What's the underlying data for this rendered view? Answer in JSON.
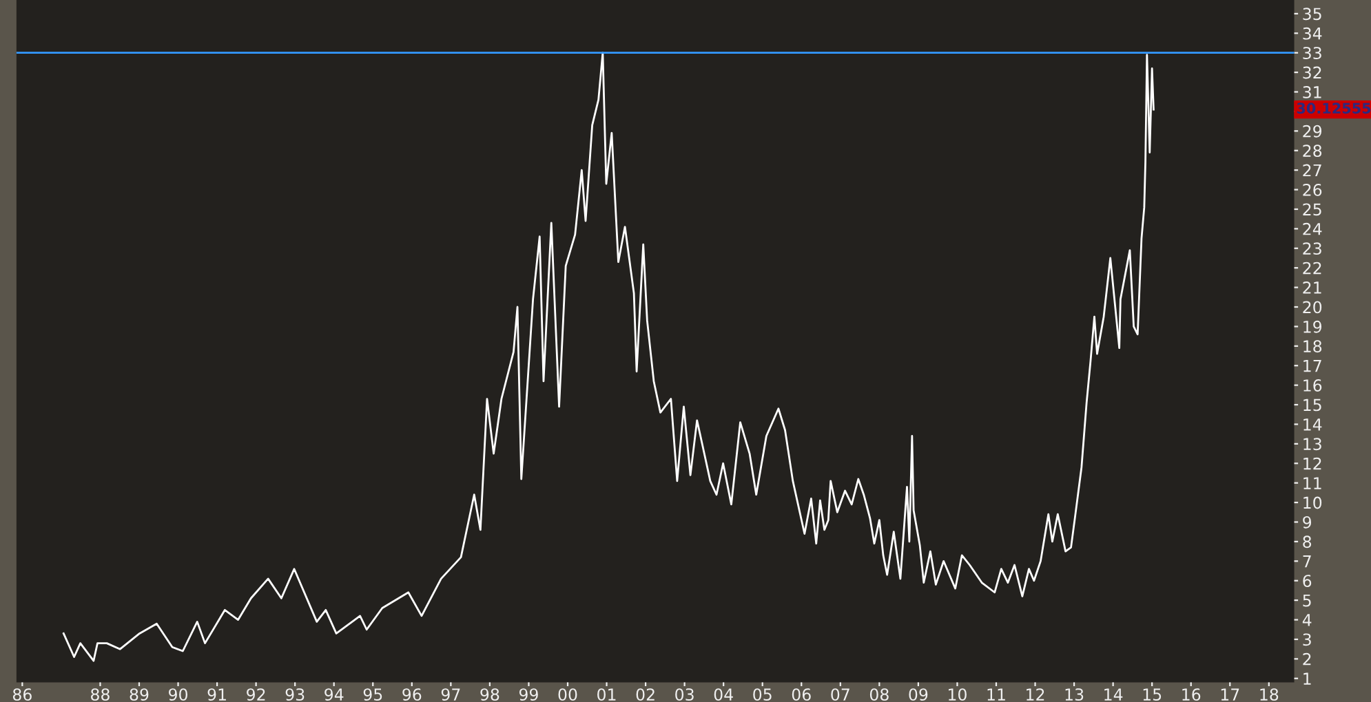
{
  "chart_data": {
    "type": "line",
    "x": [
      1987.06,
      1987.33,
      1987.49,
      1987.83,
      1987.93,
      1988.17,
      1988.51,
      1989.01,
      1989.45,
      1989.85,
      1990.12,
      1990.49,
      1990.69,
      1991.2,
      1991.54,
      1991.87,
      1992.31,
      1992.65,
      1992.98,
      1993.56,
      1993.79,
      1994.06,
      1994.67,
      1994.84,
      1995.24,
      1995.91,
      1996.25,
      1996.75,
      1997.26,
      1997.6,
      1997.76,
      1997.93,
      1998.1,
      1998.3,
      1998.61,
      1998.71,
      1998.81,
      1999.11,
      1999.28,
      1999.38,
      1999.58,
      1999.78,
      1999.95,
      2000.19,
      2000.36,
      2000.46,
      2000.63,
      2000.79,
      2000.9,
      2000.99,
      2001.13,
      2001.3,
      2001.47,
      2001.7,
      2001.77,
      2001.94,
      2002.04,
      2002.21,
      2002.38,
      2002.65,
      2002.81,
      2002.98,
      2003.15,
      2003.32,
      2003.66,
      2003.82,
      2003.99,
      2004.2,
      2004.43,
      2004.67,
      2004.84,
      2005.1,
      2005.41,
      2005.58,
      2005.78,
      2006.08,
      2006.25,
      2006.38,
      2006.48,
      2006.59,
      2006.69,
      2006.75,
      2006.92,
      2007.12,
      2007.29,
      2007.46,
      2007.6,
      2007.76,
      2007.87,
      2008.0,
      2008.1,
      2008.2,
      2008.37,
      2008.54,
      2008.71,
      2008.77,
      2008.84,
      2008.88,
      2009.04,
      2009.14,
      2009.31,
      2009.45,
      2009.65,
      2009.95,
      2010.12,
      2010.32,
      2010.63,
      2010.96,
      2011.13,
      2011.3,
      2011.47,
      2011.67,
      2011.84,
      2011.97,
      2012.14,
      2012.34,
      2012.44,
      2012.58,
      2012.78,
      2012.92,
      2013.02,
      2013.19,
      2013.32,
      2013.42,
      2013.52,
      2013.59,
      2013.76,
      2013.93,
      2014.16,
      2014.19,
      2014.43,
      2014.53,
      2014.63,
      2014.73,
      2014.8,
      2014.83,
      2014.87,
      2014.94,
      2015.0,
      2015.04
    ],
    "series": [
      {
        "color": "#ffffff",
        "values": [
          3.3,
          2.1,
          2.8,
          1.9,
          2.8,
          2.8,
          2.5,
          3.3,
          3.8,
          2.6,
          2.4,
          3.9,
          2.8,
          4.5,
          4.0,
          5.1,
          6.1,
          5.1,
          6.6,
          3.9,
          4.5,
          3.3,
          4.2,
          3.5,
          4.6,
          5.4,
          4.2,
          6.1,
          7.2,
          10.4,
          8.6,
          15.3,
          12.5,
          15.3,
          17.7,
          20.0,
          11.2,
          20.4,
          23.6,
          16.2,
          24.3,
          14.9,
          22.1,
          23.7,
          27.0,
          24.4,
          29.3,
          30.6,
          33.0,
          26.3,
          28.9,
          22.3,
          24.1,
          20.7,
          16.7,
          23.2,
          19.3,
          16.2,
          14.6,
          15.3,
          11.1,
          14.9,
          11.4,
          14.2,
          11.1,
          10.4,
          12.0,
          9.9,
          14.1,
          12.5,
          10.4,
          13.4,
          14.8,
          13.7,
          11.1,
          8.4,
          10.2,
          7.9,
          10.1,
          8.6,
          9.1,
          11.1,
          9.5,
          10.6,
          9.9,
          11.2,
          10.4,
          9.2,
          7.9,
          9.1,
          7.3,
          6.3,
          8.5,
          6.1,
          10.8,
          8.0,
          13.4,
          9.6,
          7.8,
          5.9,
          7.5,
          5.8,
          7.0,
          5.6,
          7.3,
          6.8,
          5.9,
          5.4,
          6.6,
          5.9,
          6.8,
          5.2,
          6.6,
          6.0,
          7.0,
          9.4,
          8.0,
          9.4,
          7.5,
          7.7,
          9.2,
          11.8,
          15.1,
          17.2,
          19.5,
          17.6,
          19.5,
          22.5,
          17.9,
          20.4,
          22.9,
          19.0,
          18.6,
          23.5,
          25.1,
          27.4,
          32.9,
          27.9,
          32.2,
          30.1
        ]
      }
    ],
    "xlim": [
      1985.85,
      2018.65
    ],
    "xticks": [
      {
        "value": 1986,
        "label": "86"
      },
      {
        "value": 1988,
        "label": "88"
      },
      {
        "value": 1989,
        "label": "89"
      },
      {
        "value": 1990,
        "label": "90"
      },
      {
        "value": 1991,
        "label": "91"
      },
      {
        "value": 1992,
        "label": "92"
      },
      {
        "value": 1993,
        "label": "93"
      },
      {
        "value": 1994,
        "label": "94"
      },
      {
        "value": 1995,
        "label": "95"
      },
      {
        "value": 1996,
        "label": "96"
      },
      {
        "value": 1997,
        "label": "97"
      },
      {
        "value": 1998,
        "label": "98"
      },
      {
        "value": 1999,
        "label": "99"
      },
      {
        "value": 2000,
        "label": "00"
      },
      {
        "value": 2001,
        "label": "01"
      },
      {
        "value": 2002,
        "label": "02"
      },
      {
        "value": 2003,
        "label": "03"
      },
      {
        "value": 2004,
        "label": "04"
      },
      {
        "value": 2005,
        "label": "05"
      },
      {
        "value": 2006,
        "label": "06"
      },
      {
        "value": 2007,
        "label": "07"
      },
      {
        "value": 2008,
        "label": "08"
      },
      {
        "value": 2009,
        "label": "09"
      },
      {
        "value": 2010,
        "label": "10"
      },
      {
        "value": 2011,
        "label": "11"
      },
      {
        "value": 2012,
        "label": "12"
      },
      {
        "value": 2013,
        "label": "13"
      },
      {
        "value": 2014,
        "label": "14"
      },
      {
        "value": 2015,
        "label": "15"
      },
      {
        "value": 2016,
        "label": "16"
      },
      {
        "value": 2017,
        "label": "17"
      },
      {
        "value": 2018,
        "label": "18"
      }
    ],
    "ylim": [
      0.8,
      35.7
    ],
    "yticks": [
      1,
      2,
      3,
      4,
      5,
      6,
      7,
      8,
      9,
      10,
      11,
      12,
      13,
      14,
      15,
      16,
      17,
      18,
      19,
      20,
      21,
      22,
      23,
      24,
      25,
      26,
      27,
      28,
      29,
      {
        "value": 30,
        "label": null
      },
      31,
      32,
      33,
      34,
      35
    ],
    "ref_lines": [
      {
        "axis": "y",
        "value": 33,
        "color": "#3399ff"
      }
    ],
    "annotations": [
      "30.12555"
    ],
    "grid": false,
    "legend": false,
    "marker": "none",
    "line_style": "solid"
  }
}
